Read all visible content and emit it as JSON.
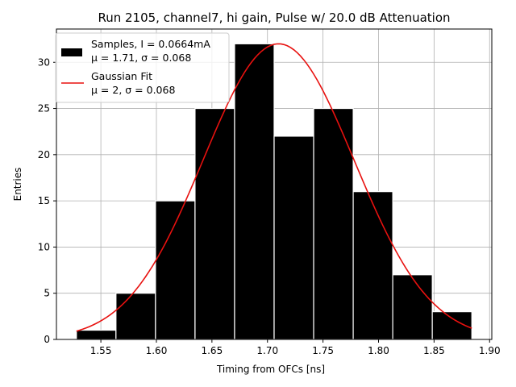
{
  "chart_data": {
    "type": "bar",
    "title": "Run 2105, channel7, hi gain, Pulse w/ 20.0 dB Attenuation",
    "xlabel": "Timing from OFCs [ns]",
    "ylabel": "Entries",
    "xlim": [
      1.51,
      1.902
    ],
    "ylim": [
      0,
      33.6
    ],
    "x_ticks": [
      1.55,
      1.6,
      1.65,
      1.7,
      1.75,
      1.8,
      1.85,
      1.9
    ],
    "x_tick_labels": [
      "1.55",
      "1.60",
      "1.65",
      "1.70",
      "1.75",
      "1.80",
      "1.85",
      "1.90"
    ],
    "y_ticks": [
      0,
      5,
      10,
      15,
      20,
      25,
      30
    ],
    "y_tick_labels": [
      "0",
      "5",
      "10",
      "15",
      "20",
      "25",
      "30"
    ],
    "grid": true,
    "legend_position": "top-left",
    "histogram": {
      "name_line1": "Samples, I = 0.0664mA",
      "name_line2": "μ = 1.71, σ = 0.068",
      "color": "#000000",
      "edge_color": "#ffffff",
      "bin_edges": [
        1.528,
        1.5636,
        1.5992,
        1.6348,
        1.6704,
        1.706,
        1.7416,
        1.7772,
        1.8128,
        1.8484,
        1.884
      ],
      "counts": [
        1,
        5,
        15,
        25,
        32,
        22,
        25,
        16,
        7,
        3
      ]
    },
    "fit": {
      "name_line1": "Gaussian Fit",
      "name_line2": "μ = 2, σ = 0.068",
      "color": "#e8110f",
      "mu": 1.71,
      "sigma": 0.068,
      "amplitude": 32.0,
      "x_range": [
        1.528,
        1.884
      ]
    }
  }
}
